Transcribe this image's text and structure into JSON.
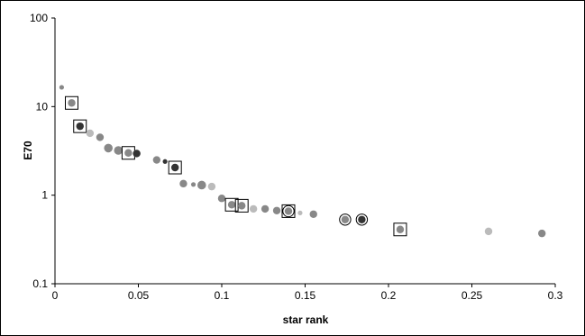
{
  "chart_data": {
    "type": "scatter",
    "title": "",
    "xlabel": "star rank",
    "ylabel": "E70",
    "xlim": [
      0,
      0.3
    ],
    "ylim": [
      0.1,
      100
    ],
    "yscale": "log",
    "grid": false,
    "legend": "none",
    "x_ticks": [
      "0",
      "0.05",
      "0.1",
      "0.15",
      "0.2",
      "0.25",
      "0.3"
    ],
    "y_ticks": [
      "0.1",
      "1",
      "10",
      "100"
    ],
    "colors": {
      "light": "#bbbbbb",
      "medium": "#888888",
      "dark": "#333333"
    },
    "points": [
      {
        "x": 0.004,
        "y": 16.5,
        "shade": "medium",
        "size": "small",
        "marker": "none"
      },
      {
        "x": 0.01,
        "y": 11.0,
        "shade": "medium",
        "size": "normal",
        "marker": "box"
      },
      {
        "x": 0.015,
        "y": 6.0,
        "shade": "dark",
        "size": "normal",
        "marker": "box"
      },
      {
        "x": 0.021,
        "y": 5.0,
        "shade": "light",
        "size": "normal",
        "marker": "none"
      },
      {
        "x": 0.027,
        "y": 4.5,
        "shade": "medium",
        "size": "normal",
        "marker": "none"
      },
      {
        "x": 0.032,
        "y": 3.4,
        "shade": "medium",
        "size": "large",
        "marker": "none"
      },
      {
        "x": 0.038,
        "y": 3.2,
        "shade": "medium",
        "size": "large",
        "marker": "none"
      },
      {
        "x": 0.044,
        "y": 3.0,
        "shade": "medium",
        "size": "normal",
        "marker": "box"
      },
      {
        "x": 0.049,
        "y": 2.95,
        "shade": "dark",
        "size": "normal",
        "marker": "none"
      },
      {
        "x": 0.061,
        "y": 2.5,
        "shade": "medium",
        "size": "normal",
        "marker": "none"
      },
      {
        "x": 0.066,
        "y": 2.4,
        "shade": "dark",
        "size": "small",
        "marker": "none"
      },
      {
        "x": 0.072,
        "y": 2.05,
        "shade": "dark",
        "size": "normal",
        "marker": "box"
      },
      {
        "x": 0.077,
        "y": 1.35,
        "shade": "medium",
        "size": "normal",
        "marker": "none"
      },
      {
        "x": 0.083,
        "y": 1.32,
        "shade": "medium",
        "size": "small",
        "marker": "none"
      },
      {
        "x": 0.088,
        "y": 1.3,
        "shade": "medium",
        "size": "large",
        "marker": "none"
      },
      {
        "x": 0.094,
        "y": 1.25,
        "shade": "light",
        "size": "normal",
        "marker": "none"
      },
      {
        "x": 0.1,
        "y": 0.92,
        "shade": "medium",
        "size": "normal",
        "marker": "none"
      },
      {
        "x": 0.106,
        "y": 0.78,
        "shade": "medium",
        "size": "normal",
        "marker": "box"
      },
      {
        "x": 0.112,
        "y": 0.76,
        "shade": "medium",
        "size": "normal",
        "marker": "box"
      },
      {
        "x": 0.119,
        "y": 0.7,
        "shade": "light",
        "size": "normal",
        "marker": "none"
      },
      {
        "x": 0.126,
        "y": 0.7,
        "shade": "medium",
        "size": "normal",
        "marker": "none"
      },
      {
        "x": 0.133,
        "y": 0.67,
        "shade": "medium",
        "size": "normal",
        "marker": "none"
      },
      {
        "x": 0.14,
        "y": 0.66,
        "shade": "medium",
        "size": "normal",
        "marker": "box-circle"
      },
      {
        "x": 0.147,
        "y": 0.63,
        "shade": "light",
        "size": "small",
        "marker": "none"
      },
      {
        "x": 0.155,
        "y": 0.61,
        "shade": "medium",
        "size": "normal",
        "marker": "none"
      },
      {
        "x": 0.174,
        "y": 0.53,
        "shade": "medium",
        "size": "normal",
        "marker": "circle"
      },
      {
        "x": 0.184,
        "y": 0.53,
        "shade": "dark",
        "size": "normal",
        "marker": "circle"
      },
      {
        "x": 0.207,
        "y": 0.41,
        "shade": "medium",
        "size": "normal",
        "marker": "box"
      },
      {
        "x": 0.26,
        "y": 0.39,
        "shade": "light",
        "size": "normal",
        "marker": "none"
      },
      {
        "x": 0.292,
        "y": 0.37,
        "shade": "medium",
        "size": "normal",
        "marker": "none"
      }
    ]
  }
}
